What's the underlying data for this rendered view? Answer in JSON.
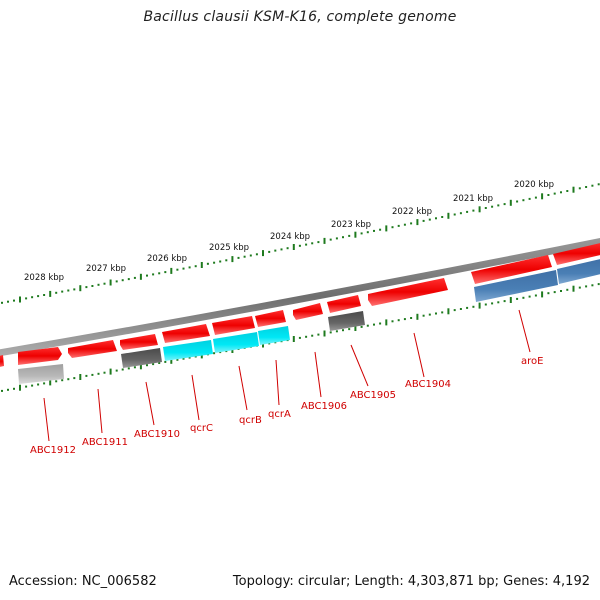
{
  "title": "Bacillus clausii KSM-K16, complete genome",
  "footer": {
    "accession": "Accession: NC_006582",
    "summary": "Topology: circular; Length: 4,303,871 bp; Genes: 4,192"
  },
  "colors": {
    "forward_gene": "#ff0000",
    "reverse_gene_blue": "#4a7fb5",
    "reverse_gene_cyan": "#00e5f2",
    "reverse_gene_dark": "#666666",
    "reverse_gene_light": "#b4b4b4",
    "backbone": "#808080",
    "scale_dots": "#1e7a1e",
    "label": "#d00000"
  },
  "scale_ticks": [
    {
      "label": "2028 kbp"
    },
    {
      "label": "2027 kbp"
    },
    {
      "label": "2026 kbp"
    },
    {
      "label": "2025 kbp"
    },
    {
      "label": "2024 kbp"
    },
    {
      "label": "2023 kbp"
    },
    {
      "label": "2022 kbp"
    },
    {
      "label": "2021 kbp"
    },
    {
      "label": "2020 kbp"
    }
  ],
  "gene_labels": [
    {
      "name": "ABC1912"
    },
    {
      "name": "ABC1911"
    },
    {
      "name": "ABC1910"
    },
    {
      "name": "qcrC"
    },
    {
      "name": "qcrB"
    },
    {
      "name": "qcrA"
    },
    {
      "name": "ABC1906"
    },
    {
      "name": "ABC1905"
    },
    {
      "name": "ABC1904"
    },
    {
      "name": "aroE"
    }
  ]
}
